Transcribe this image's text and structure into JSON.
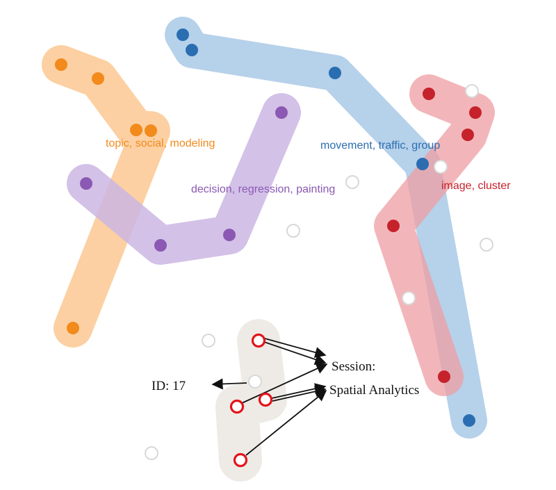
{
  "clusters": [
    {
      "id": "orange",
      "label": "topic, social, modeling",
      "color": "#f28a1c",
      "hull_color": "#fbc892",
      "points": 5
    },
    {
      "id": "blue",
      "label": "movement, traffic, group",
      "color": "#2a6eb1",
      "hull_color": "#a9c9e6",
      "points": 5
    },
    {
      "id": "purple",
      "label": "decision, regression, painting",
      "color": "#8b58b3",
      "hull_color": "#cbb6e3",
      "points": 4
    },
    {
      "id": "red",
      "label": "image, cluster",
      "color": "#c6222b",
      "hull_color": "#ed9da3",
      "points": 6
    }
  ],
  "selection": {
    "hull_color": "#eeebe6",
    "point_color": "#e3141a",
    "points": 4
  },
  "annotations": {
    "id_label": "ID: 17",
    "session_line1": "Session:",
    "session_line2": "Spatial Analytics"
  }
}
